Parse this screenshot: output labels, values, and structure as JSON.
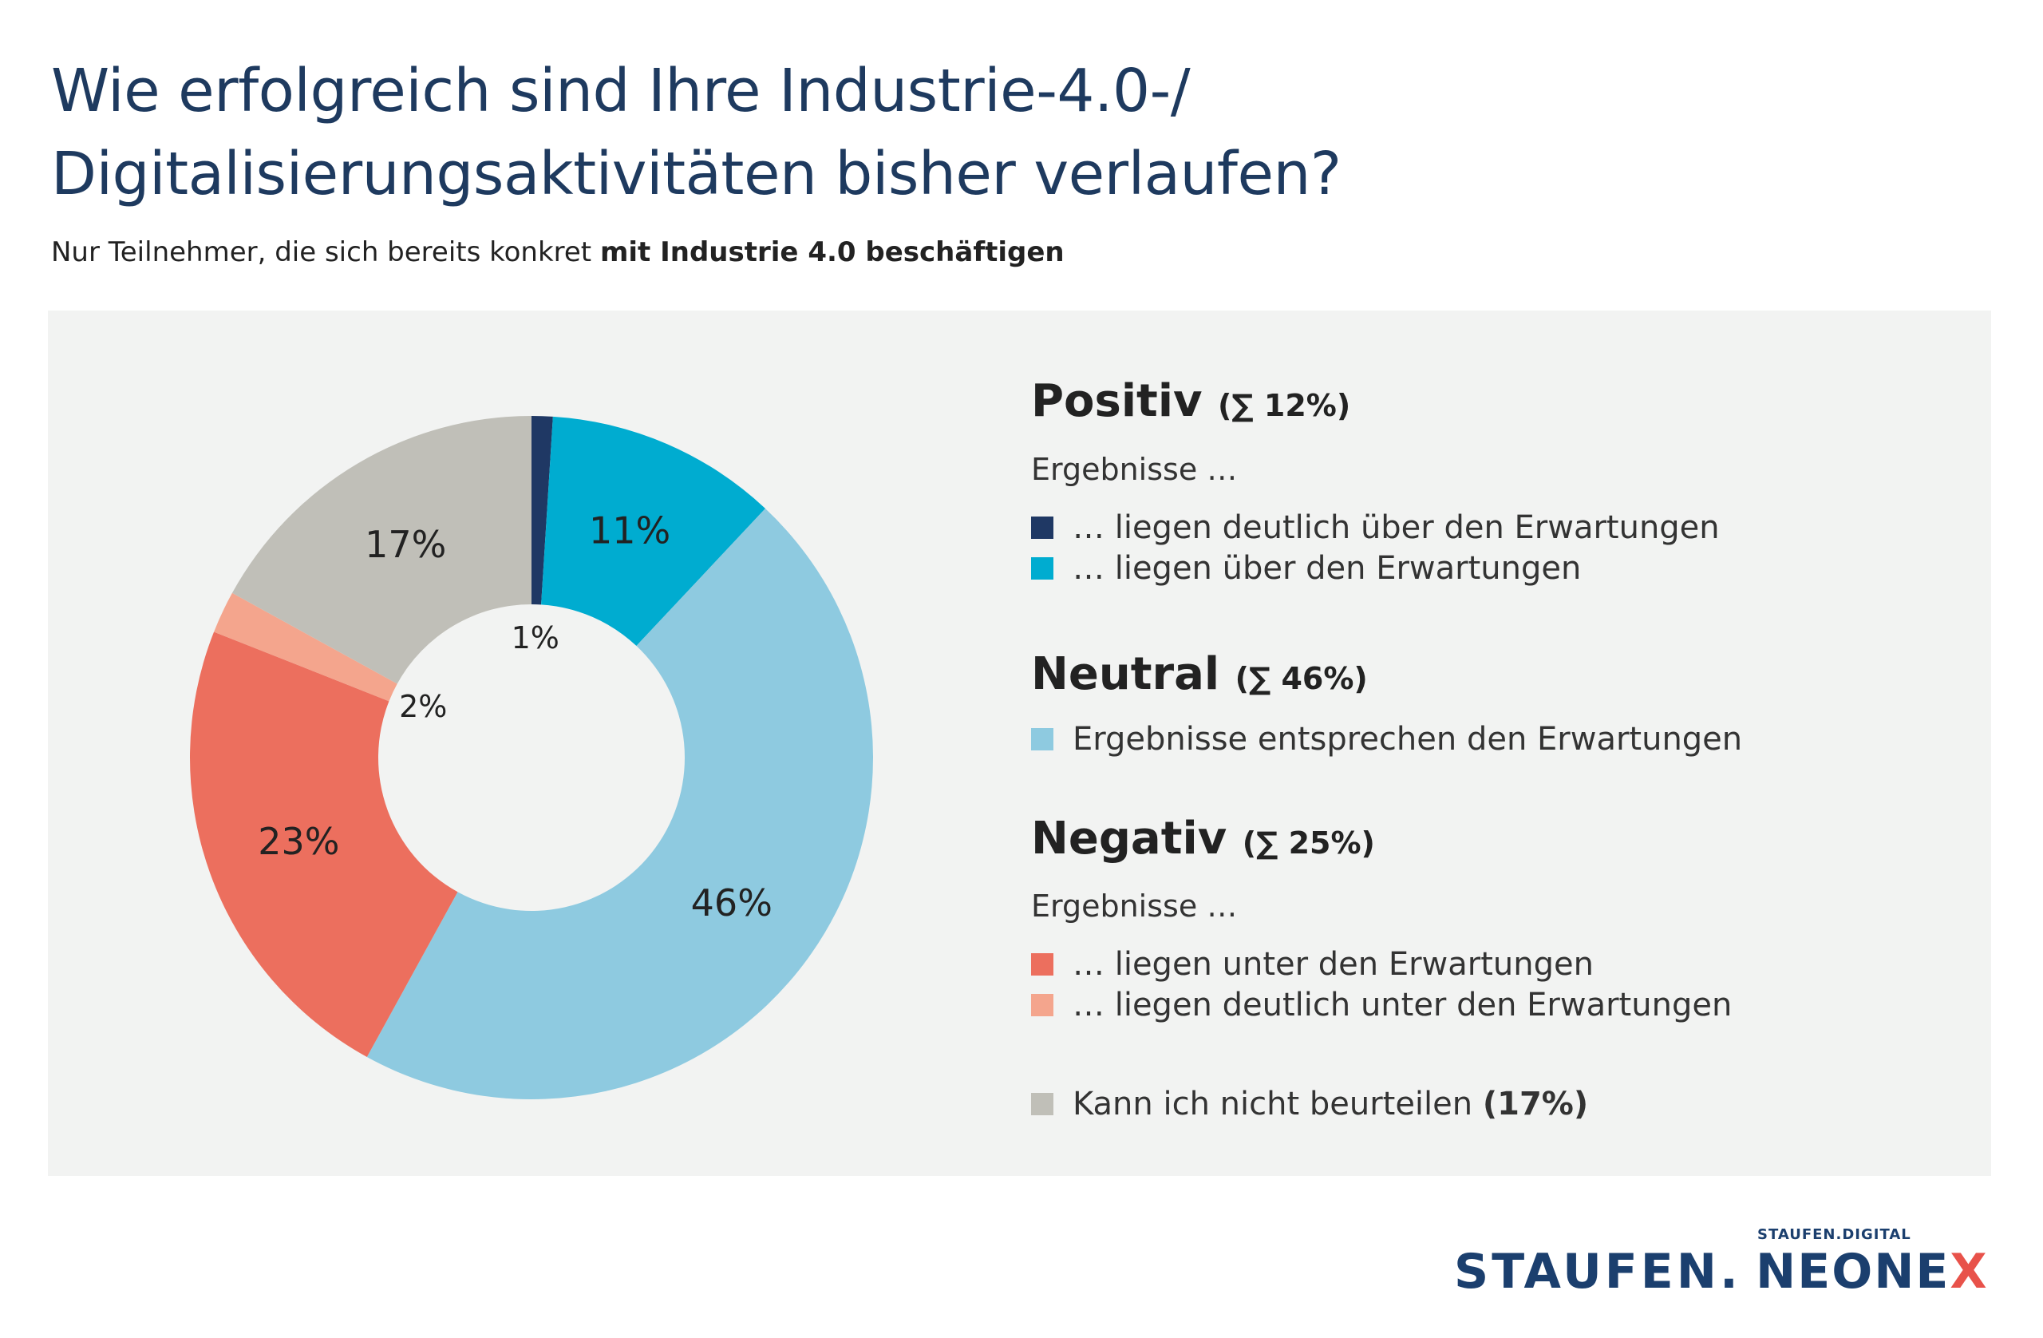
{
  "header": {
    "title_line1": "Wie erfolgreich sind Ihre Industrie-4.0-/",
    "title_line2": "Digitalisierungsaktivitäten bisher verlaufen?",
    "subtitle_regular": "Nur Teilnehmer, die sich bereits konkret ",
    "subtitle_bold": "mit Industrie 4.0 beschäftigen"
  },
  "legend": {
    "positive": {
      "heading": "Positiv",
      "sum": "(∑ 12%)",
      "intro": "Ergebnisse …",
      "items": [
        "… liegen deutlich über den Erwartungen",
        "… liegen über den Erwartungen"
      ]
    },
    "neutral": {
      "heading": "Neutral",
      "sum": "(∑ 46%)",
      "items": [
        "Ergebnisse entsprechen den Erwartungen"
      ]
    },
    "negative": {
      "heading": "Negativ",
      "sum": "(∑ 25%)",
      "intro": "Ergebnisse …",
      "items": [
        "… liegen unter den Erwartungen",
        "… liegen deutlich unter den Erwartungen"
      ]
    },
    "other": {
      "label": "Kann ich nicht beurteilen ",
      "value": "(17%)"
    }
  },
  "chart_data": {
    "type": "pie",
    "donut": true,
    "start": "top, clockwise",
    "slices": [
      {
        "label": "… liegen deutlich über den Erwartungen",
        "value": 1,
        "display": "1%",
        "color": "#1f3864"
      },
      {
        "label": "… liegen über den Erwartungen",
        "value": 11,
        "display": "11%",
        "color": "#00acd0"
      },
      {
        "label": "Ergebnisse entsprechen den Erwartungen",
        "value": 46,
        "display": "46%",
        "color": "#8ecae0"
      },
      {
        "label": "… liegen unter den Erwartungen",
        "value": 23,
        "display": "23%",
        "color": "#ec6f5e"
      },
      {
        "label": "… liegen deutlich unter den Erwartungen",
        "value": 2,
        "display": "2%",
        "color": "#f4a58d"
      },
      {
        "label": "Kann ich nicht beurteilen",
        "value": 17,
        "display": "17%",
        "color": "#c0bfb8"
      }
    ]
  },
  "logos": {
    "staufen": "STAUFEN.",
    "neonex_top": "STAUFEN.DIGITAL",
    "neonex": "NEONE",
    "neonex_x": "X"
  },
  "colors": {
    "title": "#1e3a5f",
    "panel": "#f2f3f2",
    "logo_blue": "#1b3f6e",
    "logo_red": "#e8524a"
  }
}
